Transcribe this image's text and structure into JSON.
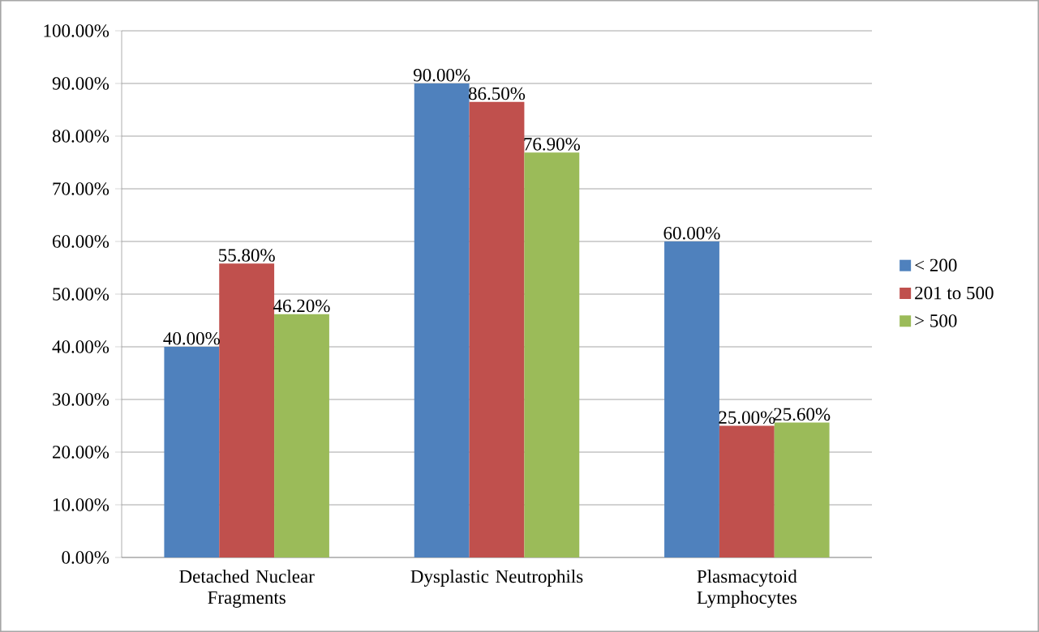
{
  "chart_data": {
    "type": "bar",
    "categories": [
      "Detached Nuclear Fragments",
      "Dysplastic Neutrophils",
      "Plasmacytoid Lymphocytes"
    ],
    "series": [
      {
        "name": "< 200",
        "color": "#4f81bd",
        "values": [
          40.0,
          90.0,
          60.0
        ],
        "value_labels": [
          "40.00%",
          "90.00%",
          "60.00%"
        ]
      },
      {
        "name": "201 to 500",
        "color": "#c0504d",
        "values": [
          55.8,
          86.5,
          25.0
        ],
        "value_labels": [
          "55.80%",
          "86.50%",
          "25.00%"
        ]
      },
      {
        "name": "> 500",
        "color": "#9bbb59",
        "values": [
          46.2,
          76.9,
          25.6
        ],
        "value_labels": [
          "46.20%",
          "76.90%",
          "25.60%"
        ]
      }
    ],
    "ylim": [
      0,
      100
    ],
    "yticks": [
      {
        "value": 0,
        "label": "0.00%"
      },
      {
        "value": 10,
        "label": "10.00%"
      },
      {
        "value": 20,
        "label": "20.00%"
      },
      {
        "value": 30,
        "label": "30.00%"
      },
      {
        "value": 40,
        "label": "40.00%"
      },
      {
        "value": 50,
        "label": "50.00%"
      },
      {
        "value": 60,
        "label": "60.00%"
      },
      {
        "value": 70,
        "label": "70.00%"
      },
      {
        "value": 80,
        "label": "80.00%"
      },
      {
        "value": 90,
        "label": "90.00%"
      },
      {
        "value": 100,
        "label": "100.00%"
      }
    ],
    "grid": "y",
    "legend": "right"
  }
}
